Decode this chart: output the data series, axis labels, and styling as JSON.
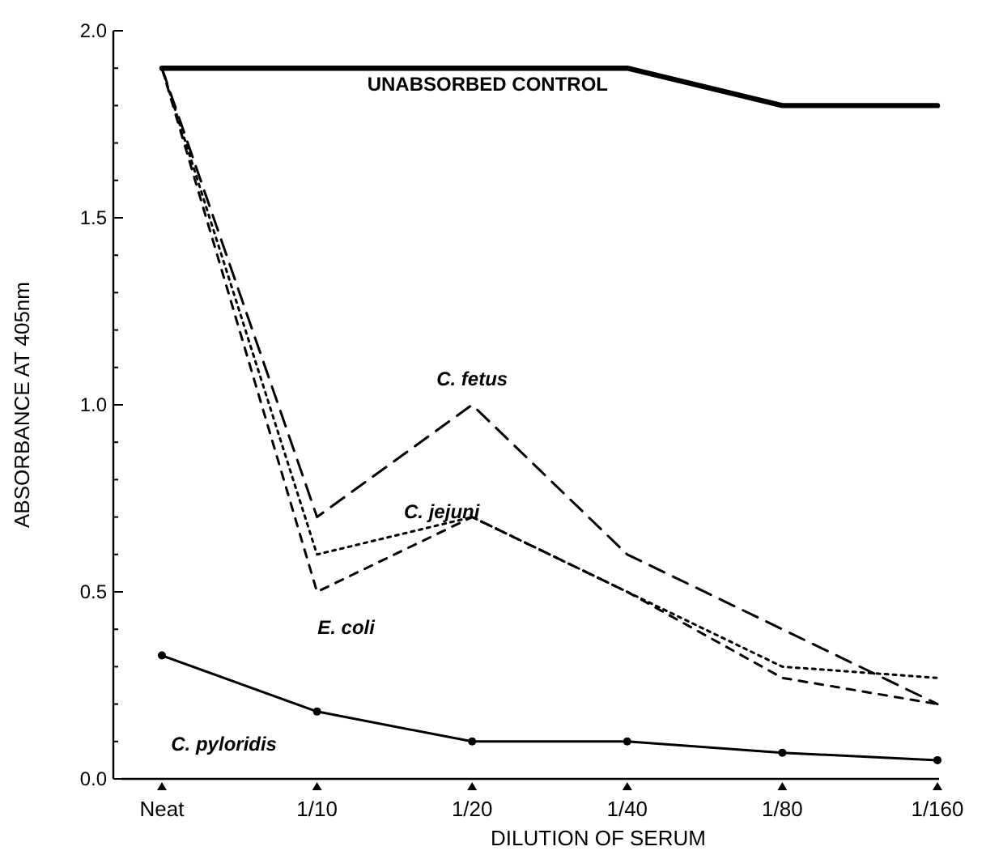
{
  "chart_data": {
    "type": "line",
    "xlabel": "DILUTION OF SERUM",
    "ylabel": "ABSORBANCE AT 405nm",
    "categories": [
      "Neat",
      "1/10",
      "1/20",
      "1/40",
      "1/80",
      "1/160"
    ],
    "ylim": [
      0,
      2.0
    ],
    "yticks": [
      {
        "value": 0,
        "label": "0.0"
      },
      {
        "value": 0.1,
        "label": null
      },
      {
        "value": 0.2,
        "label": null
      },
      {
        "value": 0.3,
        "label": null
      },
      {
        "value": 0.4,
        "label": null
      },
      {
        "value": 0.5,
        "label": "0.5"
      },
      {
        "value": 0.6,
        "label": null
      },
      {
        "value": 0.7,
        "label": null
      },
      {
        "value": 0.8,
        "label": null
      },
      {
        "value": 0.9,
        "label": null
      },
      {
        "value": 1.0,
        "label": "1.0"
      },
      {
        "value": 1.1,
        "label": null
      },
      {
        "value": 1.2,
        "label": null
      },
      {
        "value": 1.3,
        "label": null
      },
      {
        "value": 1.4,
        "label": null
      },
      {
        "value": 1.5,
        "label": "1.5"
      },
      {
        "value": 1.6,
        "label": null
      },
      {
        "value": 1.7,
        "label": null
      },
      {
        "value": 1.8,
        "label": null
      },
      {
        "value": 1.9,
        "label": null
      },
      {
        "value": 2.0,
        "label": "2.0"
      }
    ],
    "grid": false,
    "legend": false,
    "series": [
      {
        "name": "UNABSORBED CONTROL",
        "color": "#000000",
        "line_style": "solid",
        "marker": "none",
        "values": [
          1.9,
          1.9,
          1.9,
          1.9,
          1.8,
          1.8
        ]
      },
      {
        "name": "C. fetus",
        "color": "#000000",
        "line_style": "dashed",
        "marker": "none",
        "values": [
          1.9,
          0.7,
          1.0,
          0.6,
          0.4,
          0.2
        ]
      },
      {
        "name": "C. jejuni",
        "color": "#000000",
        "line_style": "dotted",
        "marker": "none",
        "values": [
          1.9,
          0.6,
          0.7,
          0.5,
          0.3,
          0.27
        ]
      },
      {
        "name": "E. coli",
        "color": "#000000",
        "line_style": "dashed",
        "marker": "none",
        "values": [
          1.9,
          0.5,
          0.7,
          0.5,
          0.27,
          0.2
        ]
      },
      {
        "name": "C. pyloridis",
        "color": "#000000",
        "line_style": "solid",
        "marker": "circle",
        "values": [
          0.33,
          0.18,
          0.1,
          0.1,
          0.07,
          0.05
        ]
      }
    ]
  }
}
